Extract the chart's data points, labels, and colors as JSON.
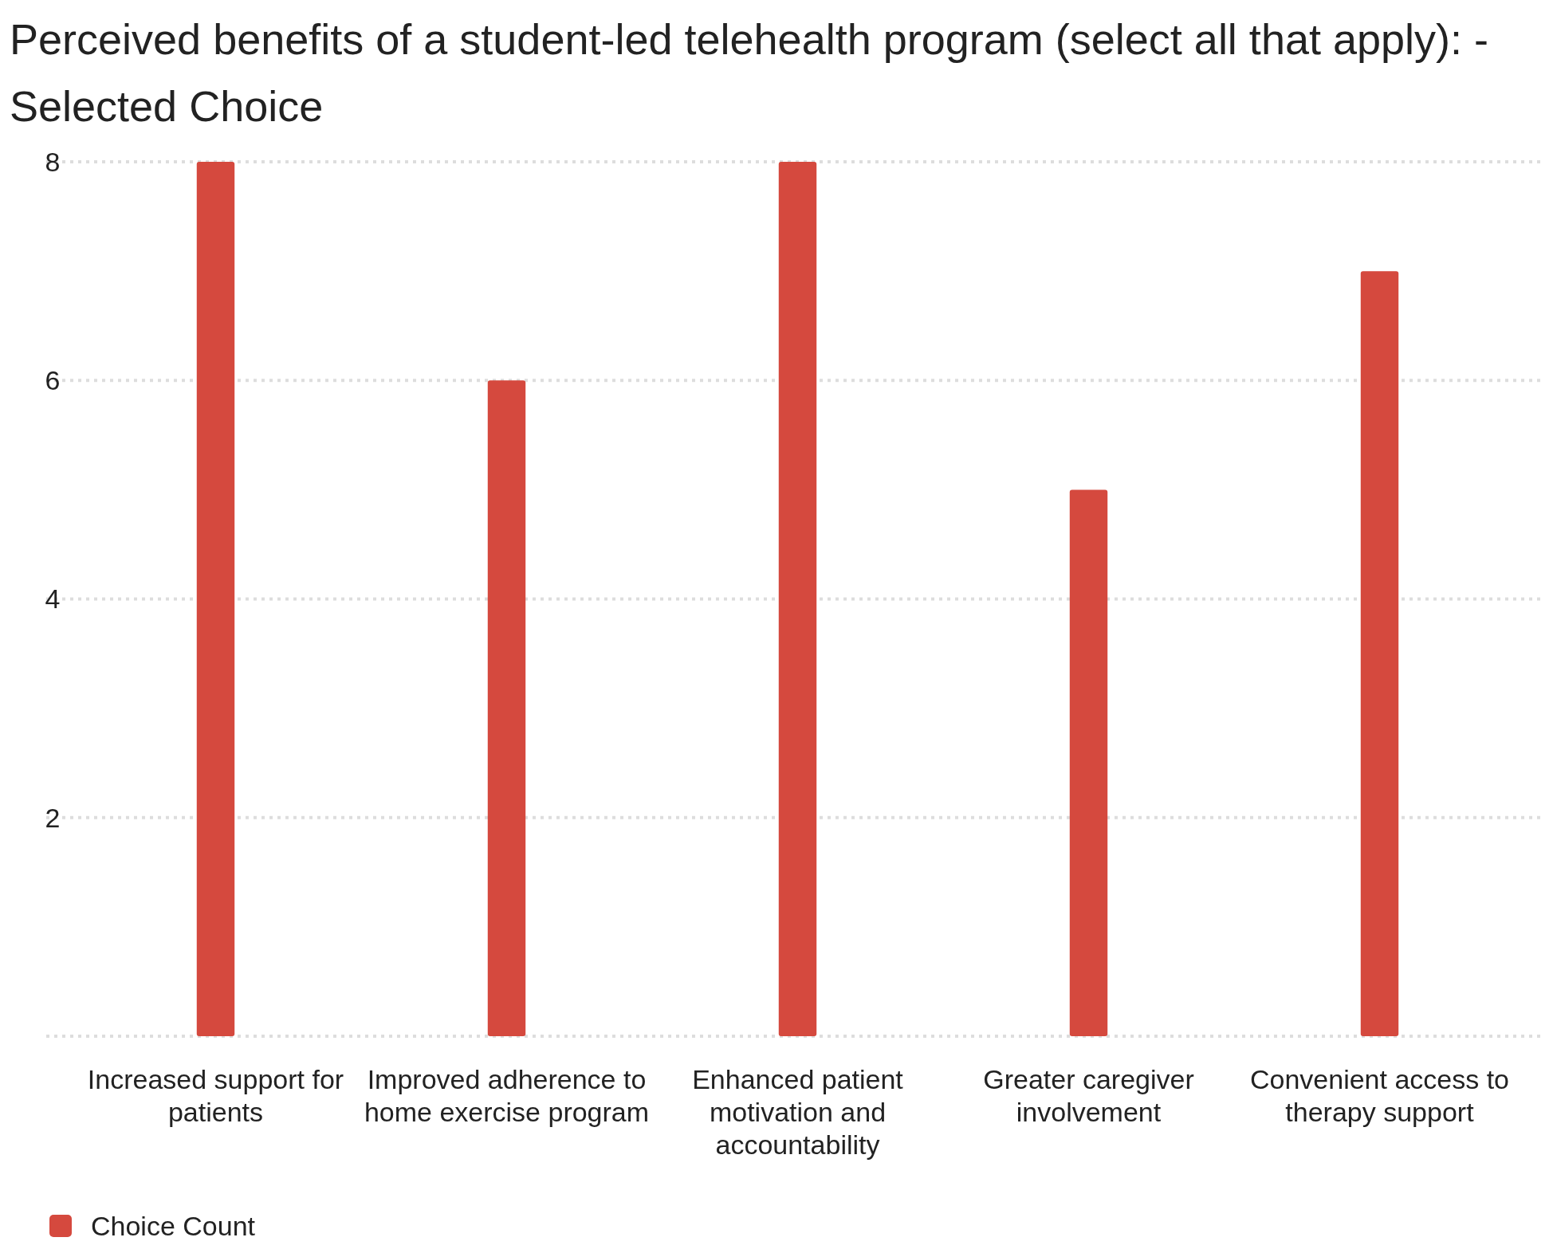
{
  "chart_data": {
    "type": "bar",
    "title": "Perceived benefits of a student-led telehealth program (select all that apply): - Selected Choice",
    "categories": [
      "Increased support for patients",
      "Improved adherence to home exercise program",
      "Enhanced patient motivation and accountability",
      "Greater caregiver involvement",
      "Convenient access to therapy support"
    ],
    "series": [
      {
        "name": "Choice Count",
        "color": "#d5493e",
        "values": [
          8,
          6,
          8,
          5,
          7
        ]
      }
    ],
    "ylim": [
      0,
      8
    ],
    "yticks": [
      {
        "value": 0,
        "label": null
      },
      2,
      4,
      6,
      8
    ],
    "grid": "y",
    "legend": "bottom left"
  }
}
